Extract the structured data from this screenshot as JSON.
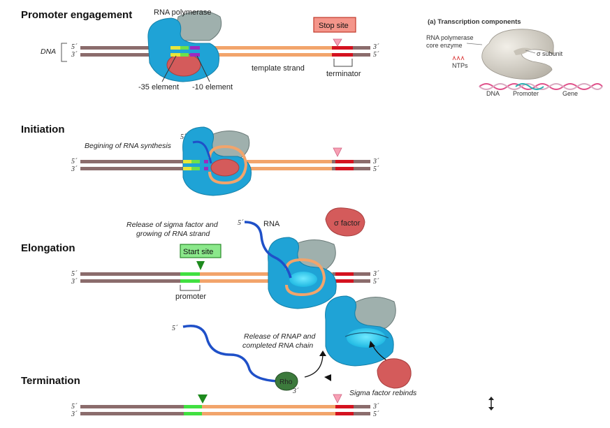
{
  "stages": {
    "promoter": "Promoter engagement",
    "initiation": "Initiation",
    "elongation": "Elongation",
    "termination": "Termination"
  },
  "labels": {
    "dna": "DNA",
    "rna_polymerase": "RNA polymerase",
    "element_35": "-35 element",
    "element_10": "-10 element",
    "template_strand": "template strand",
    "stop_site": "Stop site",
    "terminator": "terminator",
    "beginning": "Begining of RNA synthesis",
    "release_sigma_1": "Release of sigma factor and",
    "release_sigma_2": "growing of RNA strand",
    "rna": "RNA",
    "sigma_factor": "σ factor",
    "start_site": "Start site",
    "promoter": "promoter",
    "release_rnap_1": "Release of RNAP and",
    "release_rnap_2": "completed RNA chain",
    "rho": "Rho",
    "sigma_rebinds": "Sigma factor rebinds",
    "five_prime": "5´",
    "three_prime": "3´"
  },
  "inset": {
    "title": "(a) Transcription components",
    "core_1": "RNA polymerase",
    "core_2": "core enzyme",
    "ntps": "NTPs",
    "sigma_subunit": "σ subunit",
    "dna": "DNA",
    "promoter": "Promoter",
    "gene": "Gene"
  },
  "colors": {
    "dna_brown": "#8b6c6c",
    "template_orange": "#f2a46b",
    "polymerase_blue": "#1fa3d6",
    "polymerase_gray": "#9fb0ad",
    "sigma_red": "#d45b5b",
    "element_yellow": "#e7e63a",
    "element_green": "#6ee04a",
    "element_purple": "#9b2bc0",
    "terminator_red": "#d4121f",
    "rna_blue": "#1f50c8",
    "rho_green": "#3c7a3c",
    "stop_box": "#f4958a",
    "start_box": "#8be88b"
  }
}
